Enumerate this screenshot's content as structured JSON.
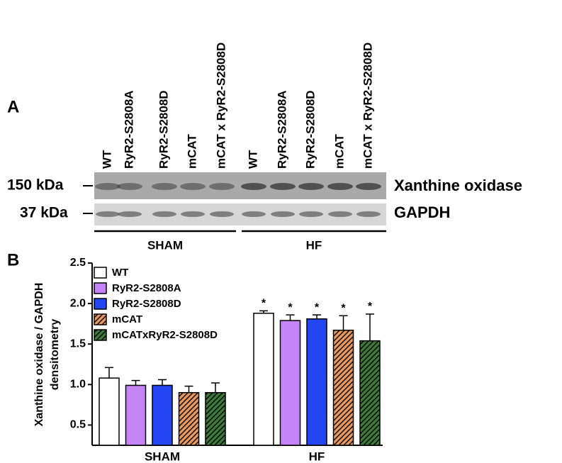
{
  "panels": [
    "A",
    "B"
  ],
  "blot": {
    "lanes": [
      "WT",
      "RyR2-S2808A",
      "RyR2-S2808D",
      "mCAT",
      "mCAT x RyR2-S2808D",
      "WT",
      "RyR2-S2808A",
      "RyR2-S2808D",
      "mCAT",
      "mCAT x RyR2-S2808D"
    ],
    "markers": [
      "150 kDa",
      "37 kDa"
    ],
    "proteins": [
      "Xanthine oxidase",
      "GAPDH"
    ],
    "groups": [
      "SHAM",
      "HF"
    ]
  },
  "chart_data": {
    "type": "bar",
    "ylabel": [
      "Xanthine oxidase / GAPDH",
      "densitometry"
    ],
    "categories": [
      "SHAM",
      "HF"
    ],
    "series": [
      {
        "name": "WT",
        "color": "#ffffff",
        "hatch": false,
        "values": [
          1.08,
          1.88
        ],
        "errors": [
          0.13,
          0.03
        ],
        "markers": [
          null,
          "*"
        ]
      },
      {
        "name": "RyR2-S2808A",
        "color": "#c584f5",
        "hatch": false,
        "values": [
          0.99,
          1.79
        ],
        "errors": [
          0.06,
          0.07
        ],
        "markers": [
          null,
          "*"
        ]
      },
      {
        "name": "RyR2-S2808D",
        "color": "#2446f2",
        "hatch": false,
        "values": [
          0.99,
          1.81
        ],
        "errors": [
          0.07,
          0.05
        ],
        "markers": [
          null,
          "*"
        ]
      },
      {
        "name": "mCAT",
        "color": "#e8995a",
        "hatch": true,
        "values": [
          0.9,
          1.67
        ],
        "errors": [
          0.08,
          0.18
        ],
        "markers": [
          null,
          "*"
        ]
      },
      {
        "name": "mCATxRyR2-S2808D",
        "color": "#3d7a3a",
        "hatch": true,
        "values": [
          0.9,
          1.54
        ],
        "errors": [
          0.12,
          0.33
        ],
        "markers": [
          null,
          "*"
        ]
      }
    ],
    "ylim": [
      0.25,
      2.5
    ],
    "yticks": [
      0.5,
      {
        "value": 1,
        "label": "1.0"
      },
      1.5,
      {
        "value": 2,
        "label": "2.0"
      },
      2.5
    ],
    "legend": "upper left"
  }
}
